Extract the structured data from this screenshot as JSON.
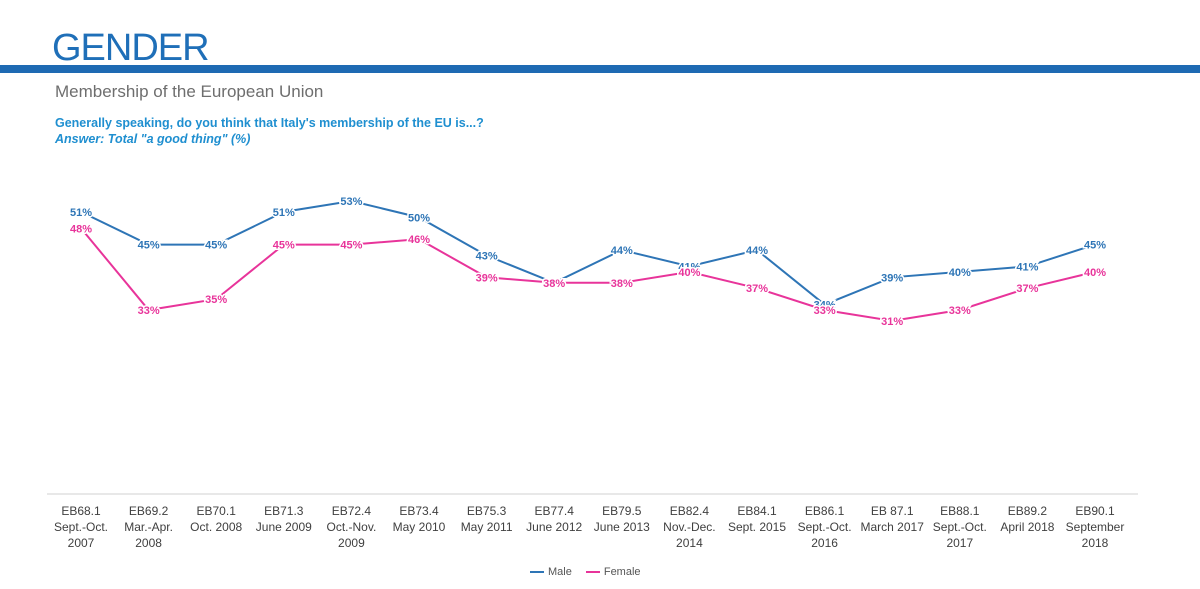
{
  "header": {
    "title": "GENDER",
    "subtitle": "Membership of the European Union"
  },
  "question": "Generally speaking, do you think that Italy's membership of the EU is...?",
  "answer": "Answer: Total \"a good thing\" (%)",
  "colors": {
    "brand": "#1e6ab3",
    "male": "#2e75b6",
    "female": "#e8349a"
  },
  "chart_data": {
    "type": "line",
    "categories": [
      [
        "EB68.1",
        "Sept.-Oct.",
        "2007"
      ],
      [
        "EB69.2",
        "Mar.-Apr.",
        "2008"
      ],
      [
        "EB70.1",
        "Oct. 2008"
      ],
      [
        "EB71.3",
        "June 2009"
      ],
      [
        "EB72.4",
        "Oct.-Nov.",
        "2009"
      ],
      [
        "EB73.4",
        "May 2010"
      ],
      [
        "EB75.3",
        "May 2011"
      ],
      [
        "EB77.4",
        "June 2012"
      ],
      [
        "EB79.5",
        "June 2013"
      ],
      [
        "EB82.4",
        "Nov.-Dec.",
        "2014"
      ],
      [
        "EB84.1",
        "Sept. 2015"
      ],
      [
        "EB86.1",
        "Sept.-Oct.",
        "2016"
      ],
      [
        "EB 87.1",
        "March 2017"
      ],
      [
        "EB88.1",
        "Sept.-Oct.",
        "2017"
      ],
      [
        "EB89.2",
        "April 2018"
      ],
      [
        "EB90.1",
        "September",
        "2018"
      ]
    ],
    "series": [
      {
        "name": "Male",
        "color": "#2e75b6",
        "values": [
          51,
          45,
          45,
          51,
          53,
          50,
          43,
          38,
          44,
          41,
          44,
          34,
          39,
          40,
          41,
          45
        ]
      },
      {
        "name": "Female",
        "color": "#e8349a",
        "values": [
          48,
          33,
          35,
          45,
          45,
          46,
          39,
          38,
          38,
          40,
          37,
          33,
          31,
          33,
          37,
          40
        ]
      }
    ],
    "value_suffix": "%",
    "legend_position": "bottom"
  }
}
